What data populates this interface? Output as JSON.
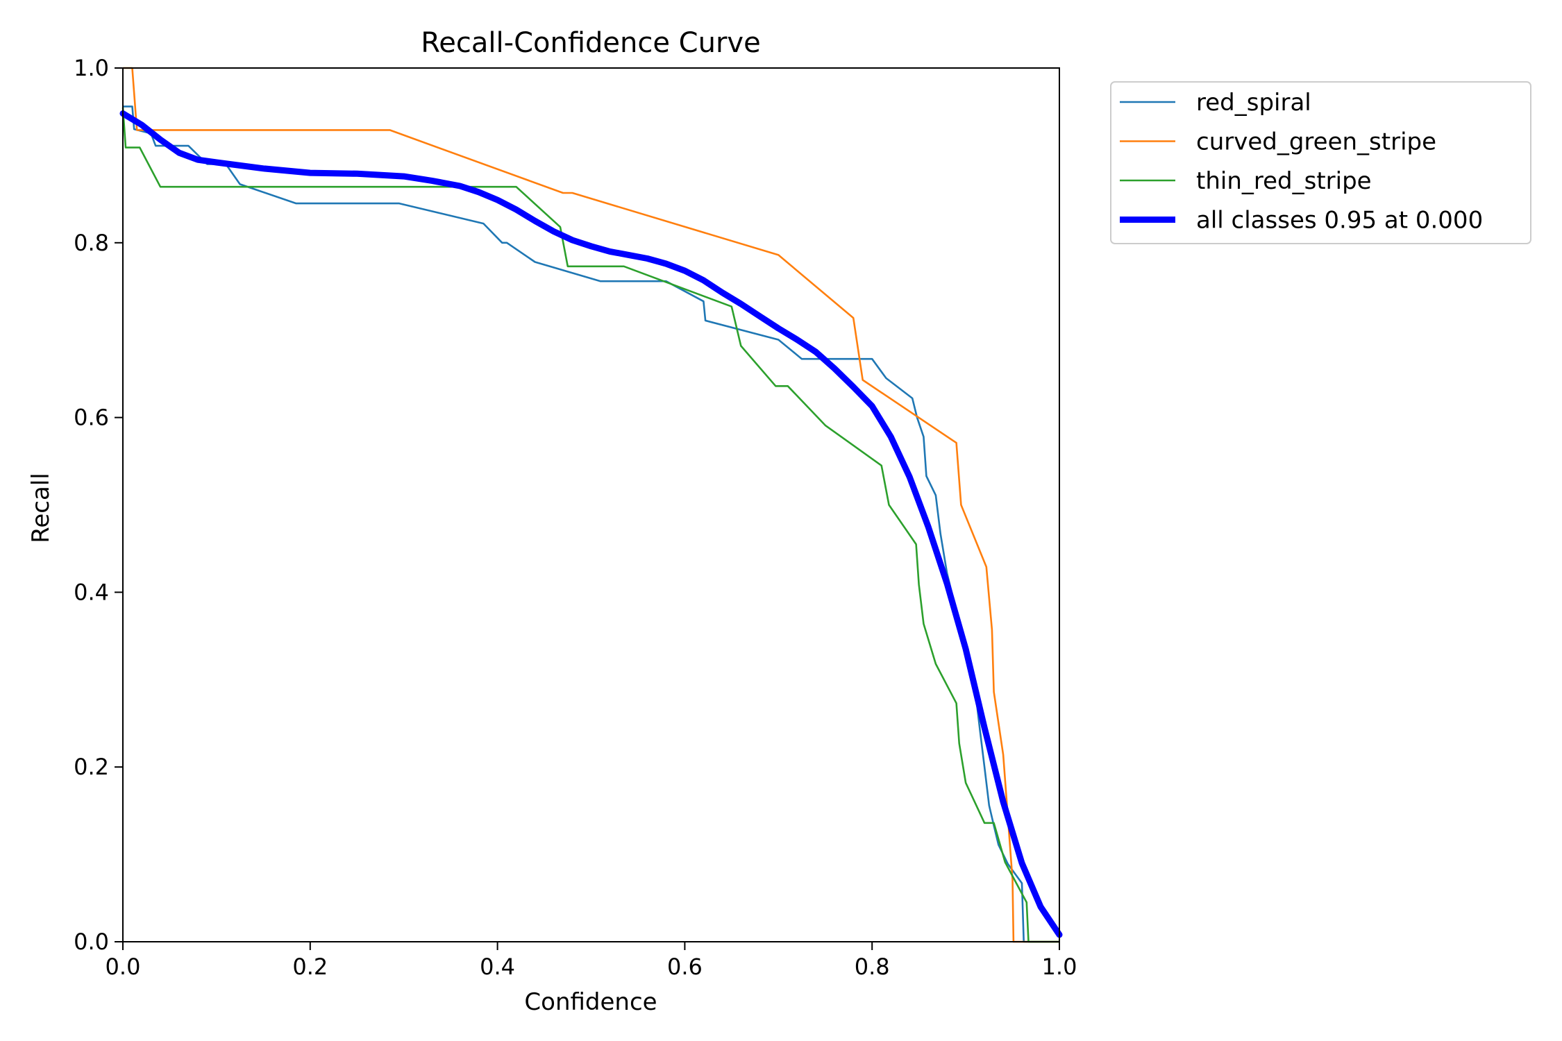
{
  "chart_data": {
    "type": "line",
    "title": "Recall-Confidence Curve",
    "xlabel": "Confidence",
    "ylabel": "Recall",
    "xlim": [
      0,
      1
    ],
    "ylim": [
      0,
      1
    ],
    "xticks": [
      "0.0",
      "0.2",
      "0.4",
      "0.6",
      "0.8",
      "1.0"
    ],
    "yticks": [
      "0.0",
      "0.2",
      "0.4",
      "0.6",
      "0.8",
      "1.0"
    ],
    "grid": false,
    "legend_position": "outside-top-right",
    "series": [
      {
        "name": "red_spiral",
        "color": "#1f77b4",
        "line": "thin",
        "points": [
          [
            0.0,
            0.956
          ],
          [
            0.01,
            0.956
          ],
          [
            0.012,
            0.93
          ],
          [
            0.03,
            0.925
          ],
          [
            0.035,
            0.911
          ],
          [
            0.07,
            0.911
          ],
          [
            0.09,
            0.89
          ],
          [
            0.11,
            0.89
          ],
          [
            0.125,
            0.867
          ],
          [
            0.185,
            0.845
          ],
          [
            0.295,
            0.845
          ],
          [
            0.385,
            0.822
          ],
          [
            0.405,
            0.8
          ],
          [
            0.41,
            0.8
          ],
          [
            0.44,
            0.778
          ],
          [
            0.51,
            0.756
          ],
          [
            0.58,
            0.756
          ],
          [
            0.62,
            0.733
          ],
          [
            0.622,
            0.711
          ],
          [
            0.7,
            0.689
          ],
          [
            0.725,
            0.667
          ],
          [
            0.8,
            0.667
          ],
          [
            0.815,
            0.645
          ],
          [
            0.843,
            0.622
          ],
          [
            0.848,
            0.6
          ],
          [
            0.855,
            0.578
          ],
          [
            0.858,
            0.533
          ],
          [
            0.868,
            0.511
          ],
          [
            0.873,
            0.467
          ],
          [
            0.88,
            0.422
          ],
          [
            0.89,
            0.378
          ],
          [
            0.895,
            0.356
          ],
          [
            0.9,
            0.333
          ],
          [
            0.91,
            0.289
          ],
          [
            0.915,
            0.244
          ],
          [
            0.92,
            0.2
          ],
          [
            0.925,
            0.156
          ],
          [
            0.93,
            0.133
          ],
          [
            0.935,
            0.111
          ],
          [
            0.945,
            0.089
          ],
          [
            0.96,
            0.067
          ],
          [
            0.962,
            0.0
          ],
          [
            1.0,
            0.0
          ]
        ]
      },
      {
        "name": "curved_green_stripe",
        "color": "#ff7f0e",
        "line": "thin",
        "points": [
          [
            0.0,
            1.0
          ],
          [
            0.01,
            1.0
          ],
          [
            0.015,
            0.929
          ],
          [
            0.285,
            0.929
          ],
          [
            0.47,
            0.857
          ],
          [
            0.48,
            0.857
          ],
          [
            0.7,
            0.786
          ],
          [
            0.78,
            0.714
          ],
          [
            0.79,
            0.643
          ],
          [
            0.89,
            0.571
          ],
          [
            0.895,
            0.5
          ],
          [
            0.922,
            0.429
          ],
          [
            0.928,
            0.357
          ],
          [
            0.93,
            0.286
          ],
          [
            0.94,
            0.214
          ],
          [
            0.95,
            0.071
          ],
          [
            0.951,
            0.0
          ],
          [
            1.0,
            0.0
          ]
        ]
      },
      {
        "name": "thin_red_stripe",
        "color": "#2ca02c",
        "line": "thin",
        "points": [
          [
            0.0,
            0.955
          ],
          [
            0.003,
            0.909
          ],
          [
            0.018,
            0.909
          ],
          [
            0.04,
            0.864
          ],
          [
            0.42,
            0.864
          ],
          [
            0.467,
            0.818
          ],
          [
            0.475,
            0.773
          ],
          [
            0.535,
            0.773
          ],
          [
            0.65,
            0.727
          ],
          [
            0.66,
            0.682
          ],
          [
            0.697,
            0.636
          ],
          [
            0.71,
            0.636
          ],
          [
            0.75,
            0.591
          ],
          [
            0.81,
            0.545
          ],
          [
            0.818,
            0.5
          ],
          [
            0.847,
            0.455
          ],
          [
            0.85,
            0.409
          ],
          [
            0.855,
            0.364
          ],
          [
            0.868,
            0.318
          ],
          [
            0.89,
            0.273
          ],
          [
            0.893,
            0.227
          ],
          [
            0.9,
            0.182
          ],
          [
            0.92,
            0.136
          ],
          [
            0.93,
            0.136
          ],
          [
            0.942,
            0.091
          ],
          [
            0.965,
            0.045
          ],
          [
            0.967,
            0.0
          ],
          [
            1.0,
            0.0
          ]
        ]
      },
      {
        "name": "all classes 0.95 at 0.000",
        "color": "#0000ff",
        "line": "thick",
        "points": [
          [
            0.0,
            0.948
          ],
          [
            0.02,
            0.935
          ],
          [
            0.04,
            0.918
          ],
          [
            0.06,
            0.903
          ],
          [
            0.08,
            0.895
          ],
          [
            0.1,
            0.892
          ],
          [
            0.15,
            0.885
          ],
          [
            0.2,
            0.88
          ],
          [
            0.25,
            0.879
          ],
          [
            0.3,
            0.876
          ],
          [
            0.33,
            0.871
          ],
          [
            0.36,
            0.865
          ],
          [
            0.38,
            0.858
          ],
          [
            0.4,
            0.849
          ],
          [
            0.42,
            0.838
          ],
          [
            0.44,
            0.825
          ],
          [
            0.46,
            0.813
          ],
          [
            0.48,
            0.803
          ],
          [
            0.5,
            0.796
          ],
          [
            0.52,
            0.79
          ],
          [
            0.54,
            0.786
          ],
          [
            0.56,
            0.782
          ],
          [
            0.58,
            0.776
          ],
          [
            0.6,
            0.768
          ],
          [
            0.62,
            0.757
          ],
          [
            0.64,
            0.743
          ],
          [
            0.66,
            0.73
          ],
          [
            0.68,
            0.716
          ],
          [
            0.7,
            0.702
          ],
          [
            0.72,
            0.689
          ],
          [
            0.74,
            0.675
          ],
          [
            0.76,
            0.656
          ],
          [
            0.78,
            0.635
          ],
          [
            0.8,
            0.613
          ],
          [
            0.82,
            0.578
          ],
          [
            0.84,
            0.532
          ],
          [
            0.86,
            0.475
          ],
          [
            0.88,
            0.41
          ],
          [
            0.9,
            0.335
          ],
          [
            0.92,
            0.245
          ],
          [
            0.94,
            0.16
          ],
          [
            0.96,
            0.09
          ],
          [
            0.98,
            0.04
          ],
          [
            1.0,
            0.008
          ]
        ]
      }
    ]
  }
}
